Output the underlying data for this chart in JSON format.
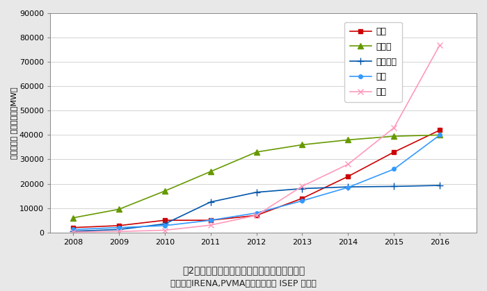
{
  "years": [
    2008,
    2009,
    2010,
    2011,
    2012,
    2013,
    2014,
    2015,
    2016
  ],
  "series": [
    {
      "name": "日本",
      "values": [
        2000,
        2800,
        5000,
        5000,
        7000,
        14000,
        23000,
        33000,
        42000
      ],
      "color": "#cc0000",
      "marker": "s",
      "markersize": 5
    },
    {
      "name": "ドイツ",
      "values": [
        6000,
        9500,
        17000,
        25000,
        33000,
        36000,
        38000,
        39500,
        40000
      ],
      "color": "#669900",
      "marker": "^",
      "markersize": 6
    },
    {
      "name": "イタリア",
      "values": [
        500,
        1200,
        3500,
        12500,
        16500,
        18000,
        18700,
        18900,
        19300
      ],
      "color": "#0055aa",
      "marker": "+",
      "markersize": 7
    },
    {
      "name": "米国",
      "values": [
        1200,
        2000,
        2800,
        5000,
        8000,
        13000,
        18500,
        26000,
        40000
      ],
      "color": "#3399ff",
      "marker": "o",
      "markersize": 4
    },
    {
      "name": "中国",
      "values": [
        200,
        400,
        900,
        3000,
        7000,
        19000,
        28000,
        43000,
        77000
      ],
      "color": "#ff99bb",
      "marker": "x",
      "markersize": 6
    }
  ],
  "ylabel": "太陽光発電 累積導入量［MW］",
  "ylim": [
    0,
    90000
  ],
  "yticks": [
    0,
    10000,
    20000,
    30000,
    40000,
    50000,
    60000,
    70000,
    80000,
    90000
  ],
  "ytick_labels": [
    "0",
    "10000",
    "20000",
    "30000",
    "40000",
    "50000",
    "60000",
    "70000",
    "80000",
    "90000"
  ],
  "caption_line1": "図2：主要国の太陽光発電の累積導入量の推移",
  "caption_line2": "（出典：IRENA,PVMAのデータより ISEP 作成）",
  "outer_bg": "#e8e8e8",
  "plot_bg": "#ffffff",
  "border_color": "#aaaaaa"
}
